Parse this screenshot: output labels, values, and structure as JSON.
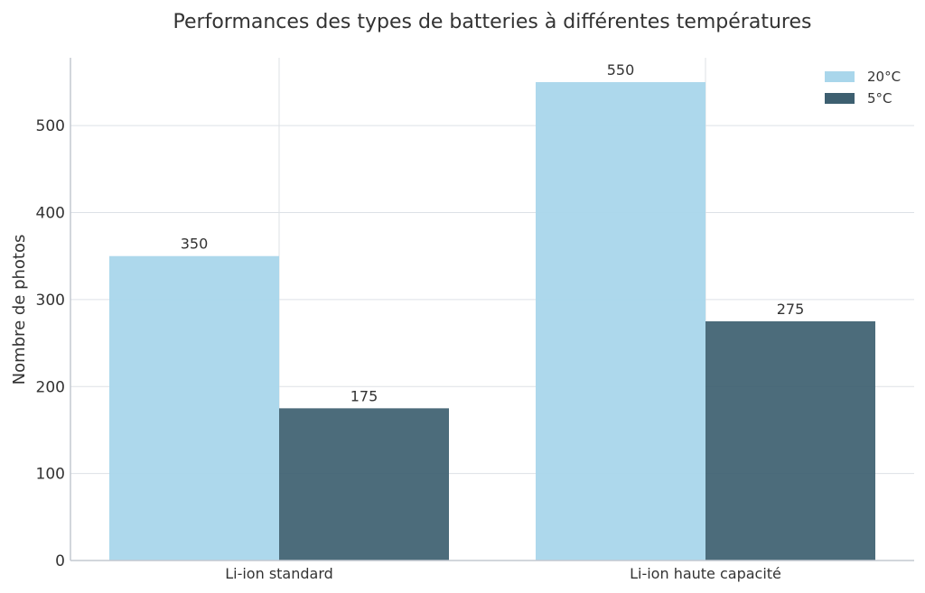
{
  "chart_data": {
    "type": "bar",
    "title": "Performances des types de batteries à différentes températures",
    "xlabel": "",
    "ylabel": "Nombre de photos",
    "categories": [
      "Li-ion standard",
      "Li-ion haute capacité"
    ],
    "series": [
      {
        "name": "20°C",
        "values": [
          350,
          550
        ],
        "color": "#a9d6eb"
      },
      {
        "name": "5°C",
        "values": [
          175,
          275
        ],
        "color": "#3d5f70"
      }
    ],
    "ylim": [
      0,
      578
    ],
    "yticks": [
      0,
      100,
      200,
      300,
      400,
      500
    ],
    "grid": true,
    "legend_position": "top-right",
    "data_labels": true
  }
}
